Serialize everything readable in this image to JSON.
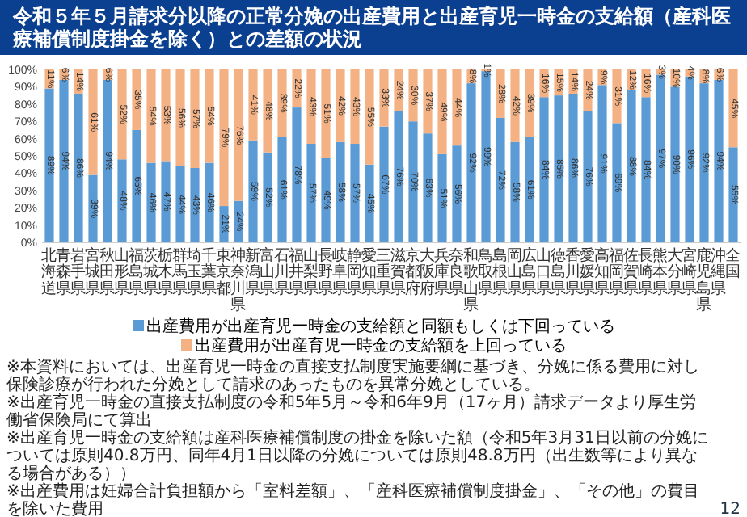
{
  "chart_data": {
    "type": "bar",
    "stacked": true,
    "title": "令和５年５月請求分以降の正常分娩の出産費用と出産育児一時金の支給額（産科医療補償制度掛金を除く）との差額の状況",
    "categories": [
      "北海道",
      "青森県",
      "岩手県",
      "宮城県",
      "秋田県",
      "山形県",
      "福島県",
      "茨城県",
      "栃木県",
      "群馬県",
      "埼玉県",
      "千葉県",
      "東京都",
      "神奈川県",
      "新潟県",
      "富山県",
      "石川県",
      "福井県",
      "山梨県",
      "長野県",
      "岐阜県",
      "静岡県",
      "愛知県",
      "三重県",
      "滋賀県",
      "京都府",
      "大阪府",
      "兵庫県",
      "奈良県",
      "和歌山県",
      "鳥取県",
      "島根県",
      "岡山県",
      "広島県",
      "山口県",
      "徳島県",
      "香川県",
      "愛媛県",
      "高知県",
      "福岡県",
      "佐賀県",
      "長崎県",
      "熊本県",
      "大分県",
      "宮崎県",
      "鹿児島県",
      "沖縄県",
      "全国"
    ],
    "series": [
      {
        "name": "出産費用が出産育児一時金の支給額と同額もしくは下回っている",
        "color": "#5b9bd5",
        "values": [
          89,
          94,
          86,
          39,
          94,
          48,
          65,
          46,
          47,
          44,
          43,
          46,
          21,
          24,
          59,
          52,
          61,
          78,
          57,
          49,
          58,
          57,
          45,
          67,
          76,
          70,
          63,
          51,
          56,
          92,
          99,
          72,
          58,
          61,
          84,
          85,
          86,
          76,
          91,
          69,
          88,
          84,
          97,
          90,
          96,
          92,
          94,
          55
        ],
        "value_labels": [
          "89%",
          "94%",
          "86%",
          "39%",
          "94%",
          "48%",
          "65%",
          "46%",
          "47%",
          "44%",
          "43%",
          "46%",
          "21%",
          "24%",
          "59%",
          "52%",
          "61%",
          "78%",
          "57%",
          "49%",
          "58%",
          "57%",
          "45%",
          "67%",
          "76%",
          "70%",
          "63%",
          "51%",
          "56%",
          "92%",
          "99%",
          "72%",
          "58%",
          "61%",
          "84%",
          "85%",
          "86%",
          "76%",
          "91%",
          "69%",
          "88%",
          "84%",
          "97%",
          "90%",
          "96%",
          "92%",
          "94%",
          "55%"
        ]
      },
      {
        "name": "出産費用が出産育児一時金の支給額を上回っている",
        "color": "#f4b183",
        "values": [
          11,
          6,
          14,
          61,
          6,
          52,
          35,
          54,
          53,
          56,
          57,
          54,
          79,
          76,
          41,
          48,
          39,
          22,
          43,
          51,
          42,
          43,
          55,
          33,
          24,
          30,
          37,
          49,
          44,
          8,
          1,
          28,
          42,
          39,
          16,
          15,
          14,
          24,
          9,
          31,
          12,
          16,
          3,
          10,
          4,
          8,
          6,
          45
        ],
        "value_labels": [
          "11%",
          "6%",
          "14%",
          "61%",
          "6%",
          "52%",
          "35%",
          "54%",
          "53%",
          "56%",
          "57%",
          "54%",
          "79%",
          "76%",
          "41%",
          "48%",
          "39%",
          "22%",
          "43%",
          "51%",
          "42%",
          "43%",
          "55%",
          "33%",
          "24%",
          "30%",
          "37%",
          "49%",
          "44%",
          "8%",
          "1%",
          "28%",
          "42%",
          "39%",
          "16%",
          "15%",
          "14%",
          "24%",
          "9%",
          "31%",
          "12%",
          "16%",
          "3%",
          "10%",
          "4%",
          "8%",
          "6%",
          "45%"
        ]
      }
    ],
    "ylim": [
      0,
      100
    ],
    "yticks": [
      {
        "value": 0,
        "label": "0%"
      },
      {
        "value": 10,
        "label": "10%"
      },
      {
        "value": 20,
        "label": "20%"
      },
      {
        "value": 30,
        "label": "30%"
      },
      {
        "value": 40,
        "label": "40%"
      },
      {
        "value": 50,
        "label": "50%"
      },
      {
        "value": 60,
        "label": "60%"
      },
      {
        "value": 70,
        "label": "70%"
      },
      {
        "value": 80,
        "label": "80%"
      },
      {
        "value": 90,
        "label": "90%"
      },
      {
        "value": 100,
        "label": "100%"
      }
    ],
    "legend": "bottom",
    "annotations": [
      "※本資料においては、出産育児一時金の直接支払制度実施要綱に基づき、分娩に係る費用に対し保険診療が行われた分娩として請求のあったものを異常分娩としている。",
      "※出産育児一時金の直接支払制度の令和5年5月～令和6年9月（17ヶ月）請求データより厚生労働省保険局にて算出",
      "※出産育児一時金の支給額は産科医療補償制度の掛金を除いた額（令和5年3月31日以前の分娩については原則40.8万円、同年4月1日以降の分娩については原則48.8万円（出生数等により異なる場合がある））",
      "※出産費用は妊婦合計負担額から「室料差額」、「産科医療補償制度掛金」、「その他」の費目を除いた費用",
      "12"
    ]
  }
}
